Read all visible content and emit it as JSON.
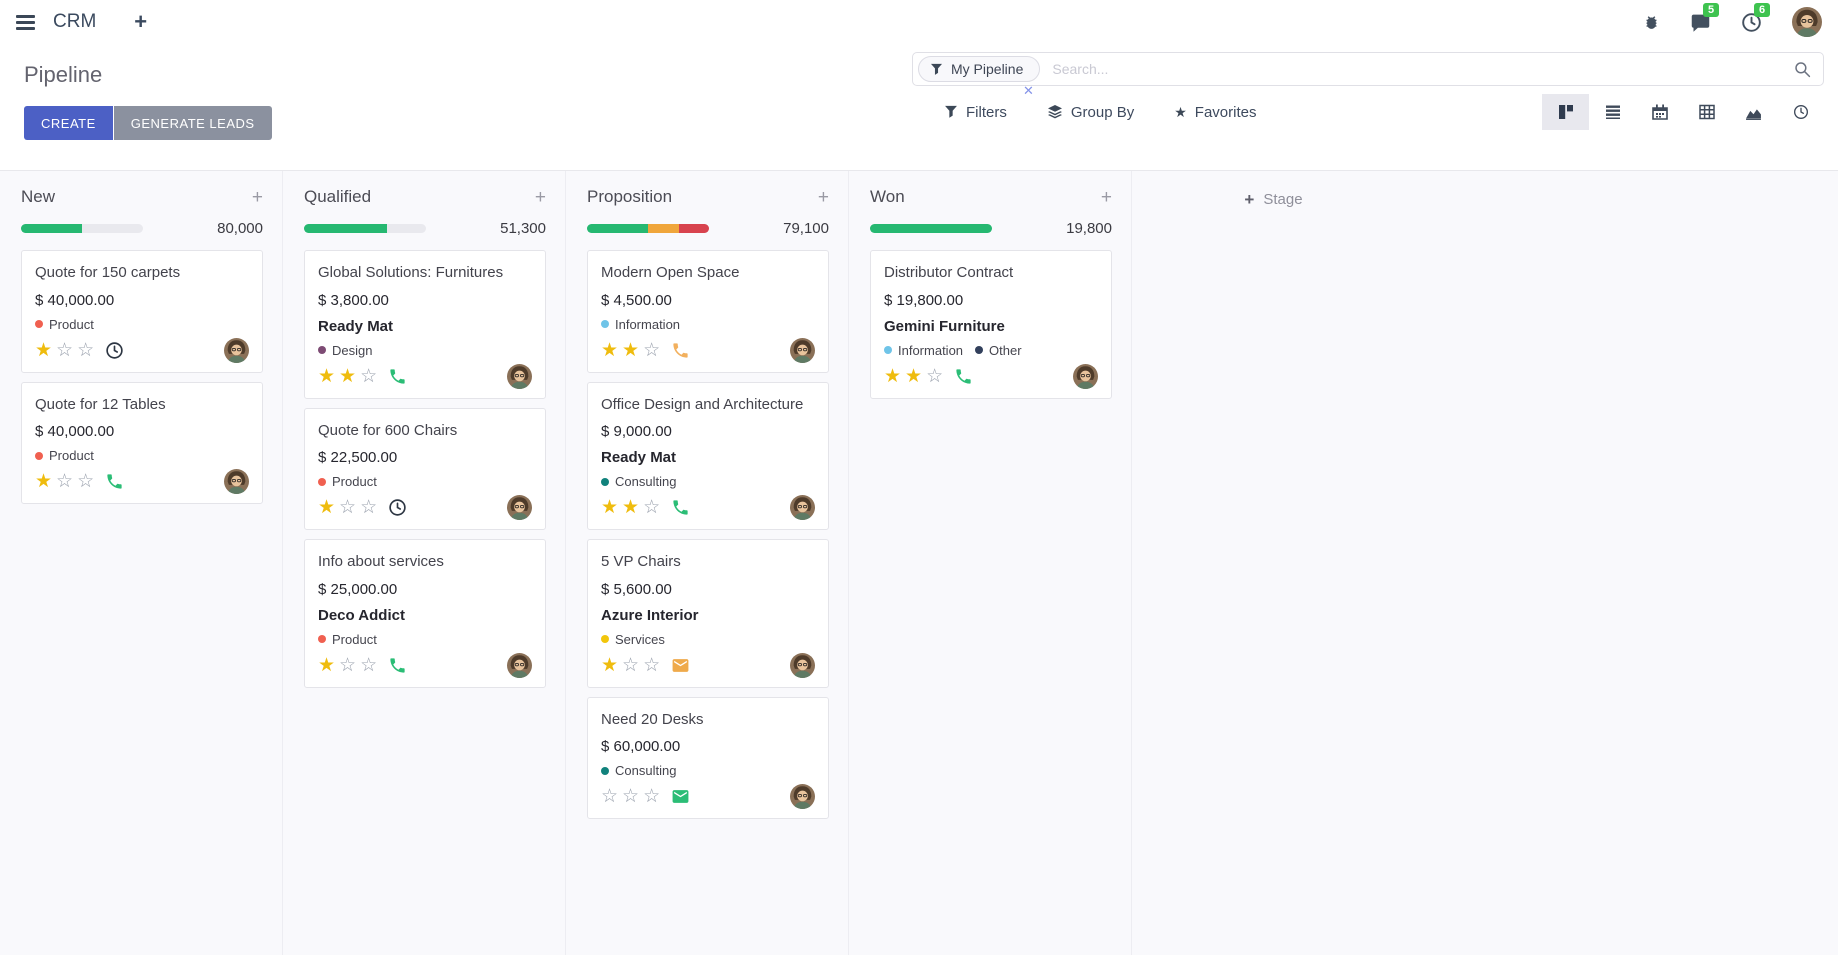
{
  "navbar": {
    "app_name": "CRM",
    "messages_badge": "5",
    "activities_badge": "6",
    "icons": [
      "apps-menu-icon",
      "plus-icon",
      "bug-icon",
      "messages-icon",
      "activities-icon",
      "user-avatar"
    ]
  },
  "control_panel": {
    "title": "Pipeline",
    "create_button": "CREATE",
    "generate_leads_button": "GENERATE LEADS",
    "search": {
      "facet_label": "My Pipeline",
      "placeholder": "Search..."
    },
    "filters_label": "Filters",
    "group_by_label": "Group By",
    "favorites_label": "Favorites",
    "view_switcher": {
      "views": [
        "kanban",
        "list",
        "calendar",
        "pivot",
        "graph",
        "activity"
      ],
      "active": "kanban"
    }
  },
  "colors": {
    "create_button": "#4c60c5",
    "generate_button": "#8b919f",
    "badge_green": "#3ec34f",
    "star_filled": "#efbc0e",
    "progress_green": "#26b871",
    "progress_orange": "#f0a63b",
    "progress_red": "#d8434e"
  },
  "board": {
    "add_stage_label": "Stage",
    "columns": [
      {
        "name": "New",
        "total": "80,000",
        "progress": [
          {
            "color": "green",
            "pct": 50
          }
        ],
        "cards": [
          {
            "title": "Quote for 150 carpets",
            "amount": "$ 40,000.00",
            "partner": "",
            "tags": [
              {
                "label": "Product",
                "color": "#f06050"
              }
            ],
            "stars": 1,
            "activity": {
              "icon": "clock-icon",
              "color": "#2d3643"
            }
          },
          {
            "title": "Quote for 12 Tables",
            "amount": "$ 40,000.00",
            "partner": "",
            "tags": [
              {
                "label": "Product",
                "color": "#f06050"
              }
            ],
            "stars": 1,
            "activity": {
              "icon": "phone-icon",
              "color": "#2bbd76"
            }
          }
        ]
      },
      {
        "name": "Qualified",
        "total": "51,300",
        "progress": [
          {
            "color": "green",
            "pct": 68
          }
        ],
        "cards": [
          {
            "title": "Global Solutions: Furnitures",
            "amount": "$ 3,800.00",
            "partner": "Ready Mat",
            "tags": [
              {
                "label": "Design",
                "color": "#7d4b74"
              }
            ],
            "stars": 2,
            "activity": {
              "icon": "phone-icon",
              "color": "#2bbd76"
            }
          },
          {
            "title": "Quote for 600 Chairs",
            "amount": "$ 22,500.00",
            "partner": "",
            "tags": [
              {
                "label": "Product",
                "color": "#f06050"
              }
            ],
            "stars": 1,
            "activity": {
              "icon": "clock-icon",
              "color": "#2d3643"
            }
          },
          {
            "title": "Info about services",
            "amount": "$ 25,000.00",
            "partner": "Deco Addict",
            "tags": [
              {
                "label": "Product",
                "color": "#f06050"
              }
            ],
            "stars": 1,
            "activity": {
              "icon": "phone-icon",
              "color": "#2bbd76"
            }
          }
        ]
      },
      {
        "name": "Proposition",
        "total": "79,100",
        "progress": [
          {
            "color": "green",
            "pct": 50
          },
          {
            "color": "orange",
            "pct": 25
          },
          {
            "color": "red",
            "pct": 25
          }
        ],
        "cards": [
          {
            "title": "Modern Open Space",
            "amount": "$ 4,500.00",
            "partner": "",
            "tags": [
              {
                "label": "Information",
                "color": "#6fc4e8"
              }
            ],
            "stars": 2,
            "activity": {
              "icon": "phone-icon",
              "color": "#f2b05e"
            }
          },
          {
            "title": "Office Design and Architecture",
            "amount": "$ 9,000.00",
            "partner": "Ready Mat",
            "tags": [
              {
                "label": "Consulting",
                "color": "#11827c"
              }
            ],
            "stars": 2,
            "activity": {
              "icon": "phone-icon",
              "color": "#2bbd76"
            }
          },
          {
            "title": "5 VP Chairs",
            "amount": "$ 5,600.00",
            "partner": "Azure Interior",
            "tags": [
              {
                "label": "Services",
                "color": "#f2c60b"
              }
            ],
            "stars": 1,
            "activity": {
              "icon": "envelope-icon",
              "color": "#efaa4b"
            }
          },
          {
            "title": "Need 20 Desks",
            "amount": "$ 60,000.00",
            "partner": "",
            "tags": [
              {
                "label": "Consulting",
                "color": "#11827c"
              }
            ],
            "stars": 0,
            "activity": {
              "icon": "envelope-icon",
              "color": "#2bbd76"
            }
          }
        ]
      },
      {
        "name": "Won",
        "total": "19,800",
        "progress": [
          {
            "color": "green",
            "pct": 100
          }
        ],
        "cards": [
          {
            "title": "Distributor Contract",
            "amount": "$ 19,800.00",
            "partner": "Gemini Furniture",
            "tags": [
              {
                "label": "Information",
                "color": "#6fc4e8"
              },
              {
                "label": "Other",
                "color": "#32405c"
              }
            ],
            "stars": 2,
            "activity": {
              "icon": "phone-icon",
              "color": "#2bbd76"
            }
          }
        ]
      }
    ]
  }
}
